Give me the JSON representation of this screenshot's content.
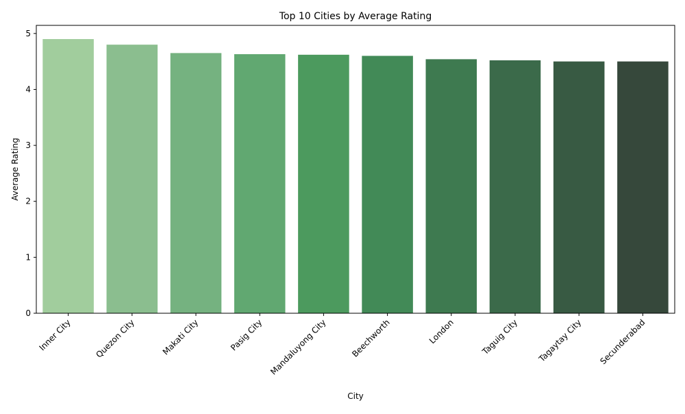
{
  "chart_data": {
    "type": "bar",
    "title": "Top 10 Cities by Average Rating",
    "xlabel": "City",
    "ylabel": "Average Rating",
    "categories": [
      "Inner City",
      "Quezon City",
      "Makati City",
      "Pasig City",
      "Mandaluyong City",
      "Beechworth",
      "London",
      "Taguig City",
      "Tagaytay City",
      "Secunderabad"
    ],
    "values": [
      4.9,
      4.8,
      4.65,
      4.63,
      4.62,
      4.6,
      4.54,
      4.52,
      4.5,
      4.5
    ],
    "colors": [
      "#a1cd9d",
      "#8bbe8f",
      "#75b280",
      "#61a871",
      "#4c9a5e",
      "#428a57",
      "#3e7a50",
      "#3b6a4a",
      "#385a43",
      "#36483b"
    ],
    "ylim": [
      0,
      5.145
    ],
    "yticks": [
      0,
      1,
      2,
      3,
      4,
      5
    ],
    "grid": false,
    "legend": "none"
  }
}
